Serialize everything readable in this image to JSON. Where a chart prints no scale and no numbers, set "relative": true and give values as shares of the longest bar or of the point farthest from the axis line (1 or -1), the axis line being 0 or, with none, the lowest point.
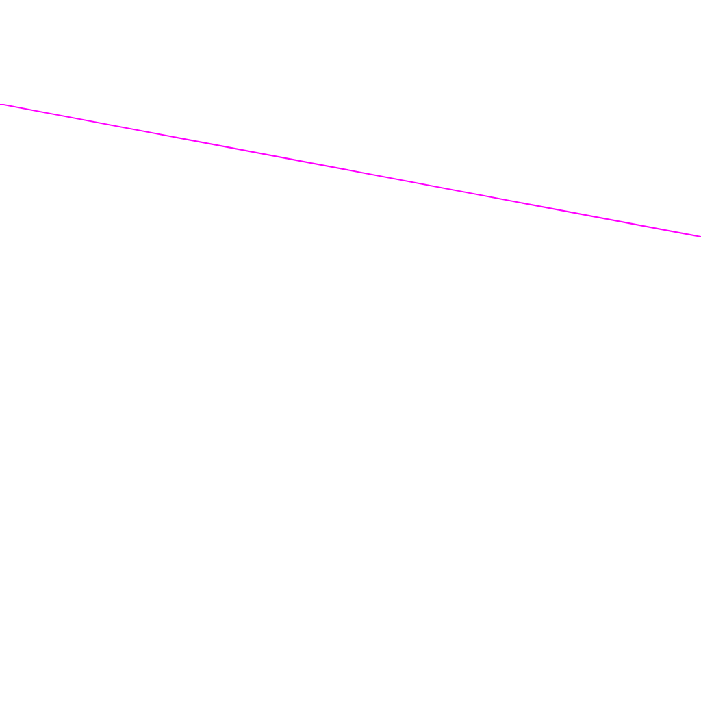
{
  "chart_data": {
    "type": "line",
    "relative": true,
    "categories": [
      null,
      null
    ],
    "values": [
      1,
      0
    ],
    "color": "#ff00ff",
    "marker": "none"
  }
}
